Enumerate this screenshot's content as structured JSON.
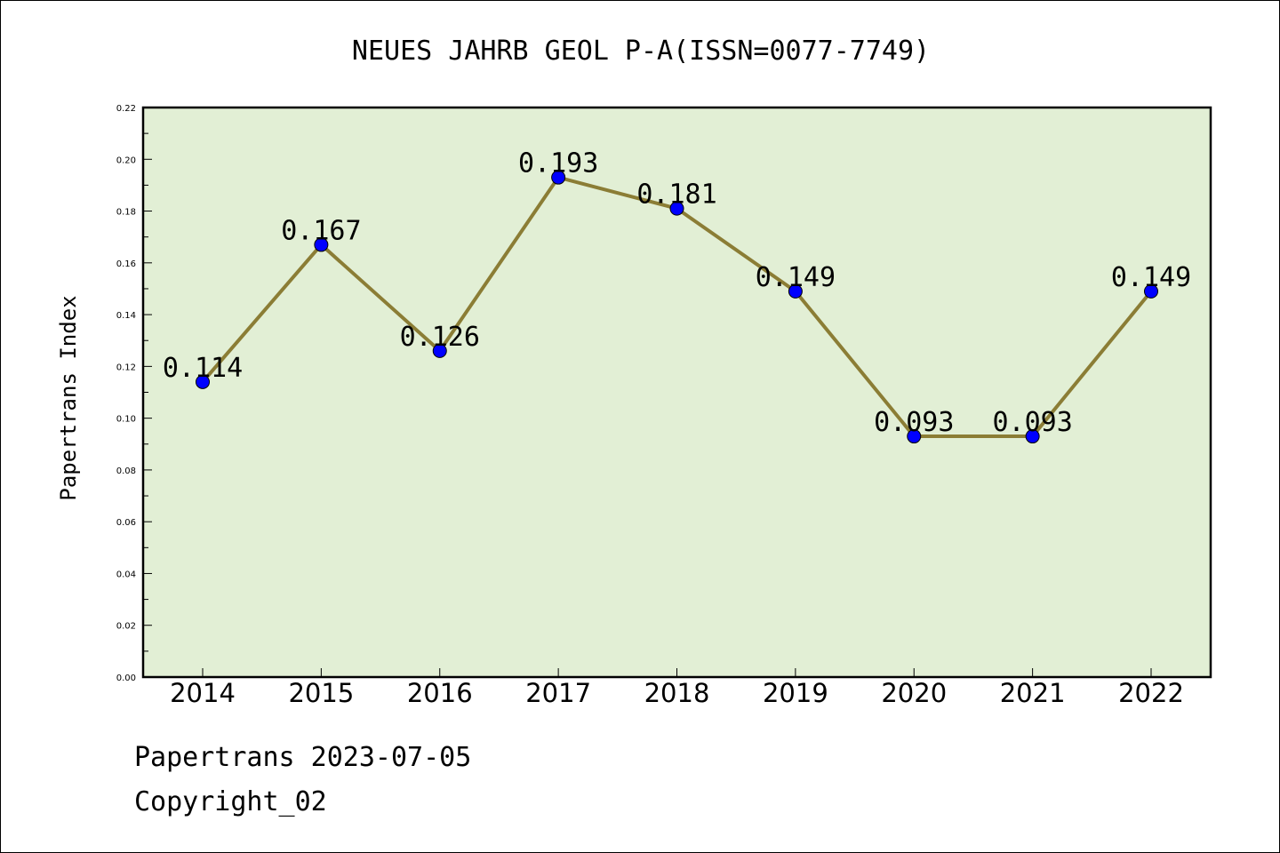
{
  "chart_data": {
    "type": "line",
    "title": "NEUES JAHRB GEOL P-A(ISSN=0077-7749)",
    "xlabel": "",
    "ylabel": "Papertrans Index",
    "categories": [
      "2014",
      "2015",
      "2016",
      "2017",
      "2018",
      "2019",
      "2020",
      "2021",
      "2022"
    ],
    "values": [
      0.114,
      0.167,
      0.126,
      0.193,
      0.181,
      0.149,
      0.093,
      0.093,
      0.149
    ],
    "data_labels": [
      "0.114",
      "0.167",
      "0.126",
      "0.193",
      "0.181",
      "0.149",
      "0.093",
      "0.093",
      "0.149"
    ],
    "ylim": [
      0,
      0.22
    ],
    "yticks": [
      "0.00",
      "0.02",
      "0.04",
      "0.06",
      "0.08",
      "0.10",
      "0.12",
      "0.14",
      "0.16",
      "0.18",
      "0.20",
      "0.22"
    ],
    "grid": false,
    "colors": {
      "plot_background": "#e2efd5",
      "line": "#8b7d35",
      "marker": "#0000ff",
      "axes": "#000000"
    }
  },
  "footer": {
    "date_text": "Papertrans 2023-07-05",
    "copyright_text": "Copyright_02"
  }
}
